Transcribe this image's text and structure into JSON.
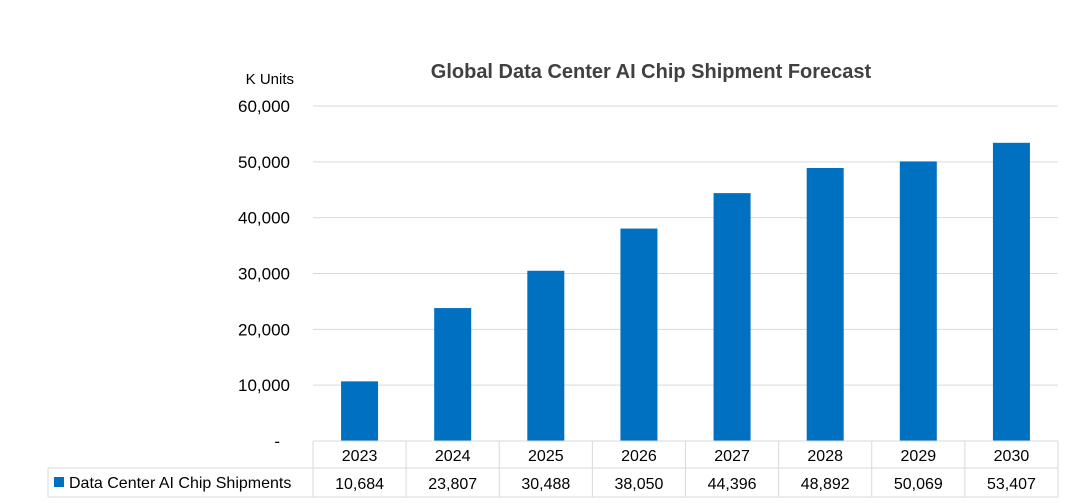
{
  "chart_data": {
    "type": "bar",
    "title": "Global Data Center AI Chip Shipment Forecast",
    "ylabel": "K Units",
    "xlabel": "",
    "categories": [
      "2023",
      "2024",
      "2025",
      "2026",
      "2027",
      "2028",
      "2029",
      "2030"
    ],
    "series": [
      {
        "name": "Data Center AI Chip Shipments",
        "values": [
          10684,
          23807,
          30488,
          38050,
          44396,
          48892,
          50069,
          53407
        ],
        "labels": [
          "10,684",
          "23,807",
          "30,488",
          "38,050",
          "44,396",
          "48,892",
          "50,069",
          "53,407"
        ]
      }
    ],
    "ylim": [
      0,
      60000
    ],
    "yticks": [
      0,
      10000,
      20000,
      30000,
      40000,
      50000,
      60000
    ],
    "ytick_labels": [
      "-",
      "10,000",
      "20,000",
      "30,000",
      "40,000",
      "50,000",
      "60,000"
    ],
    "grid": true,
    "legend": "data-table",
    "colors": {
      "bar": "#0070C0",
      "grid": "#D9D9D9",
      "text": "#000000",
      "title": "#404040"
    }
  }
}
